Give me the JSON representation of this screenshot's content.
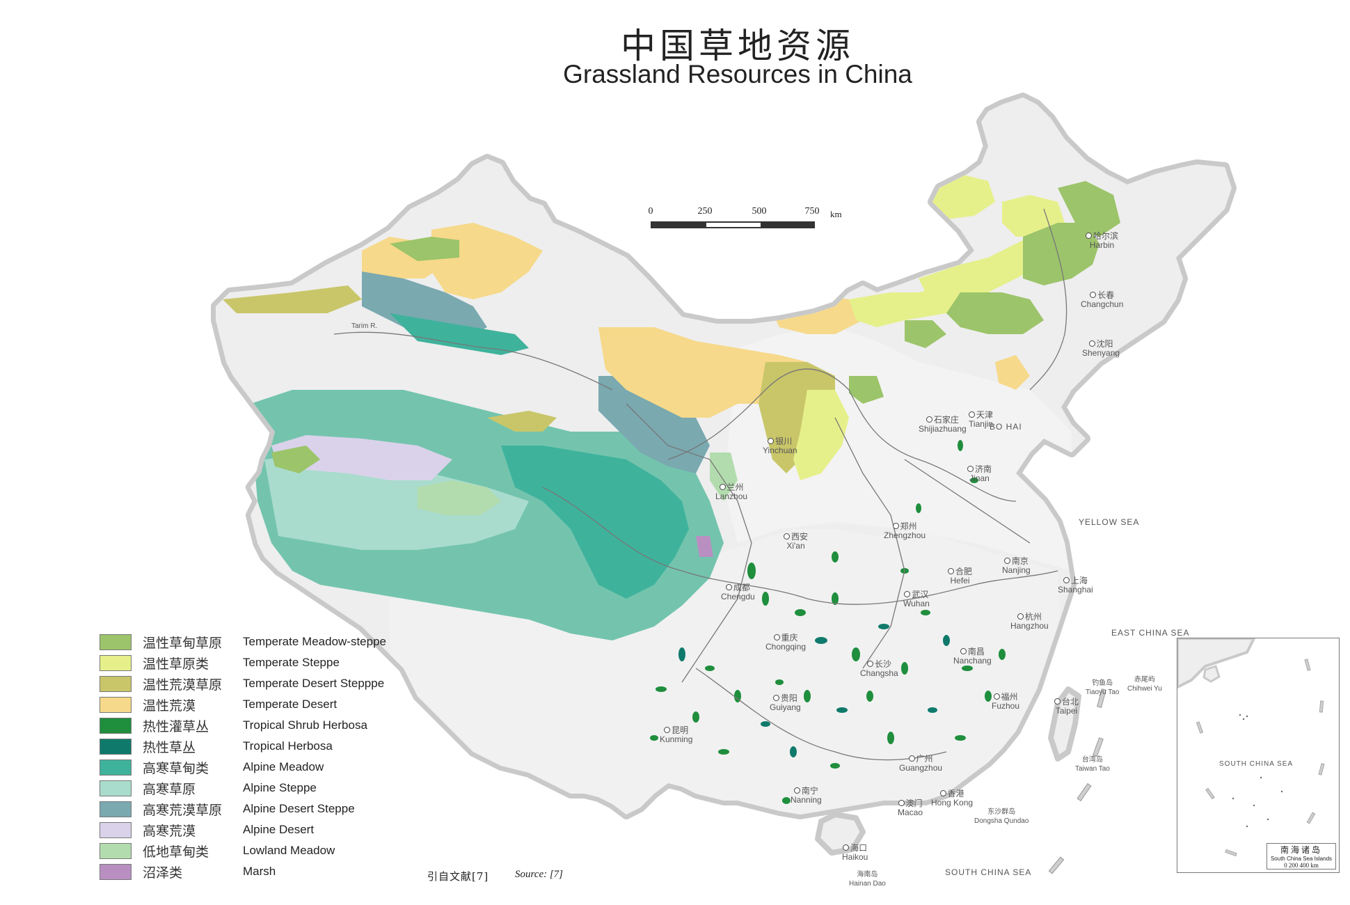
{
  "title": {
    "cn": "中国草地资源",
    "en": "Grassland Resources in China"
  },
  "scale_bar": {
    "ticks": [
      "0",
      "250",
      "500",
      "750"
    ],
    "unit": "km"
  },
  "legend": [
    {
      "cn": "温性草甸草原",
      "en": "Temperate Meadow-steppe",
      "color": "#9cc46a"
    },
    {
      "cn": "温性草原类",
      "en": "Temperate Steppe",
      "color": "#e6f08a"
    },
    {
      "cn": "温性荒漠草原",
      "en": "Temperate Desert Stepppe",
      "color": "#c9c66a"
    },
    {
      "cn": "温性荒漠",
      "en": "Temperate Desert",
      "color": "#f6d98a"
    },
    {
      "cn": "热性灌草丛",
      "en": "Tropical Shrub Herbosa",
      "color": "#1f8e3d"
    },
    {
      "cn": "热性草丛",
      "en": "Tropical Herbosa",
      "color": "#0f7a6b"
    },
    {
      "cn": "高寒草甸类",
      "en": "Alpine Meadow",
      "color": "#3fb29c"
    },
    {
      "cn": "高寒草原",
      "en": "Alpine Steppe",
      "color": "#a9dccd"
    },
    {
      "cn": "高寒荒漠草原",
      "en": "Alpine Desert Steppe",
      "color": "#7aa9b0"
    },
    {
      "cn": "高寒荒漠",
      "en": "Alpine Desert",
      "color": "#d9d2ea"
    },
    {
      "cn": "低地草甸类",
      "en": "Lowland Meadow",
      "color": "#b3dcae"
    },
    {
      "cn": "沼泽类",
      "en": "Marsh",
      "color": "#b98fc2"
    }
  ],
  "source": {
    "cn": "引自文献[7]",
    "en": "Source: [7]"
  },
  "cities": [
    {
      "cn": "长春",
      "en": "Changchun"
    },
    {
      "cn": "沈阳",
      "en": "Shenyang"
    },
    {
      "cn": "哈尔滨",
      "en": "Harbin"
    },
    {
      "cn": "石家庄",
      "en": "Shijiazhuang"
    },
    {
      "cn": "天津",
      "en": "Tianjin"
    },
    {
      "cn": "济南",
      "en": "Jinan"
    },
    {
      "cn": "银川",
      "en": "Yinchuan"
    },
    {
      "cn": "兰州",
      "en": "Lanzhou"
    },
    {
      "cn": "西安",
      "en": "Xi'an"
    },
    {
      "cn": "郑州",
      "en": "Zhengzhou"
    },
    {
      "cn": "合肥",
      "en": "Hefei"
    },
    {
      "cn": "南京",
      "en": "Nanjing"
    },
    {
      "cn": "上海",
      "en": "Shanghai"
    },
    {
      "cn": "武汉",
      "en": "Wuhan"
    },
    {
      "cn": "杭州",
      "en": "Hangzhou"
    },
    {
      "cn": "成都",
      "en": "Chengdu"
    },
    {
      "cn": "重庆",
      "en": "Chongqing"
    },
    {
      "cn": "长沙",
      "en": "Changsha"
    },
    {
      "cn": "南昌",
      "en": "Nanchang"
    },
    {
      "cn": "福州",
      "en": "Fuzhou"
    },
    {
      "cn": "台北",
      "en": "Taipei"
    },
    {
      "cn": "贵阳",
      "en": "Guiyang"
    },
    {
      "cn": "昆明",
      "en": "Kunming"
    },
    {
      "cn": "广州",
      "en": "Guangzhou"
    },
    {
      "cn": "南宁",
      "en": "Nanning"
    },
    {
      "cn": "香港",
      "en": "Hong Kong"
    },
    {
      "cn": "澳门",
      "en": "Macao"
    },
    {
      "cn": "海口",
      "en": "Haikou"
    }
  ],
  "place_labels": [
    {
      "cn": "",
      "en": "Tarim R."
    },
    {
      "cn": "钓鱼岛",
      "en": "Tiaoyu Tao"
    },
    {
      "cn": "赤尾屿",
      "en": "Chihwei Yu"
    },
    {
      "cn": "台湾岛",
      "en": "Taiwan Tao"
    },
    {
      "cn": "东沙群岛",
      "en": "Dongsha Qundao"
    },
    {
      "cn": "海南岛",
      "en": "Hainan Dao"
    }
  ],
  "seas": {
    "bo_hai": "BO HAI",
    "yellow_sea": "YELLOW SEA",
    "east_china_sea": "EAST CHINA SEA",
    "south_china_sea": "SOUTH CHINA SEA"
  },
  "inset": {
    "title_cn": "南海诸岛",
    "title_en": "South China Sea Islands",
    "sea_label": "SOUTH CHINA SEA",
    "scale": "0   200  400 km"
  }
}
